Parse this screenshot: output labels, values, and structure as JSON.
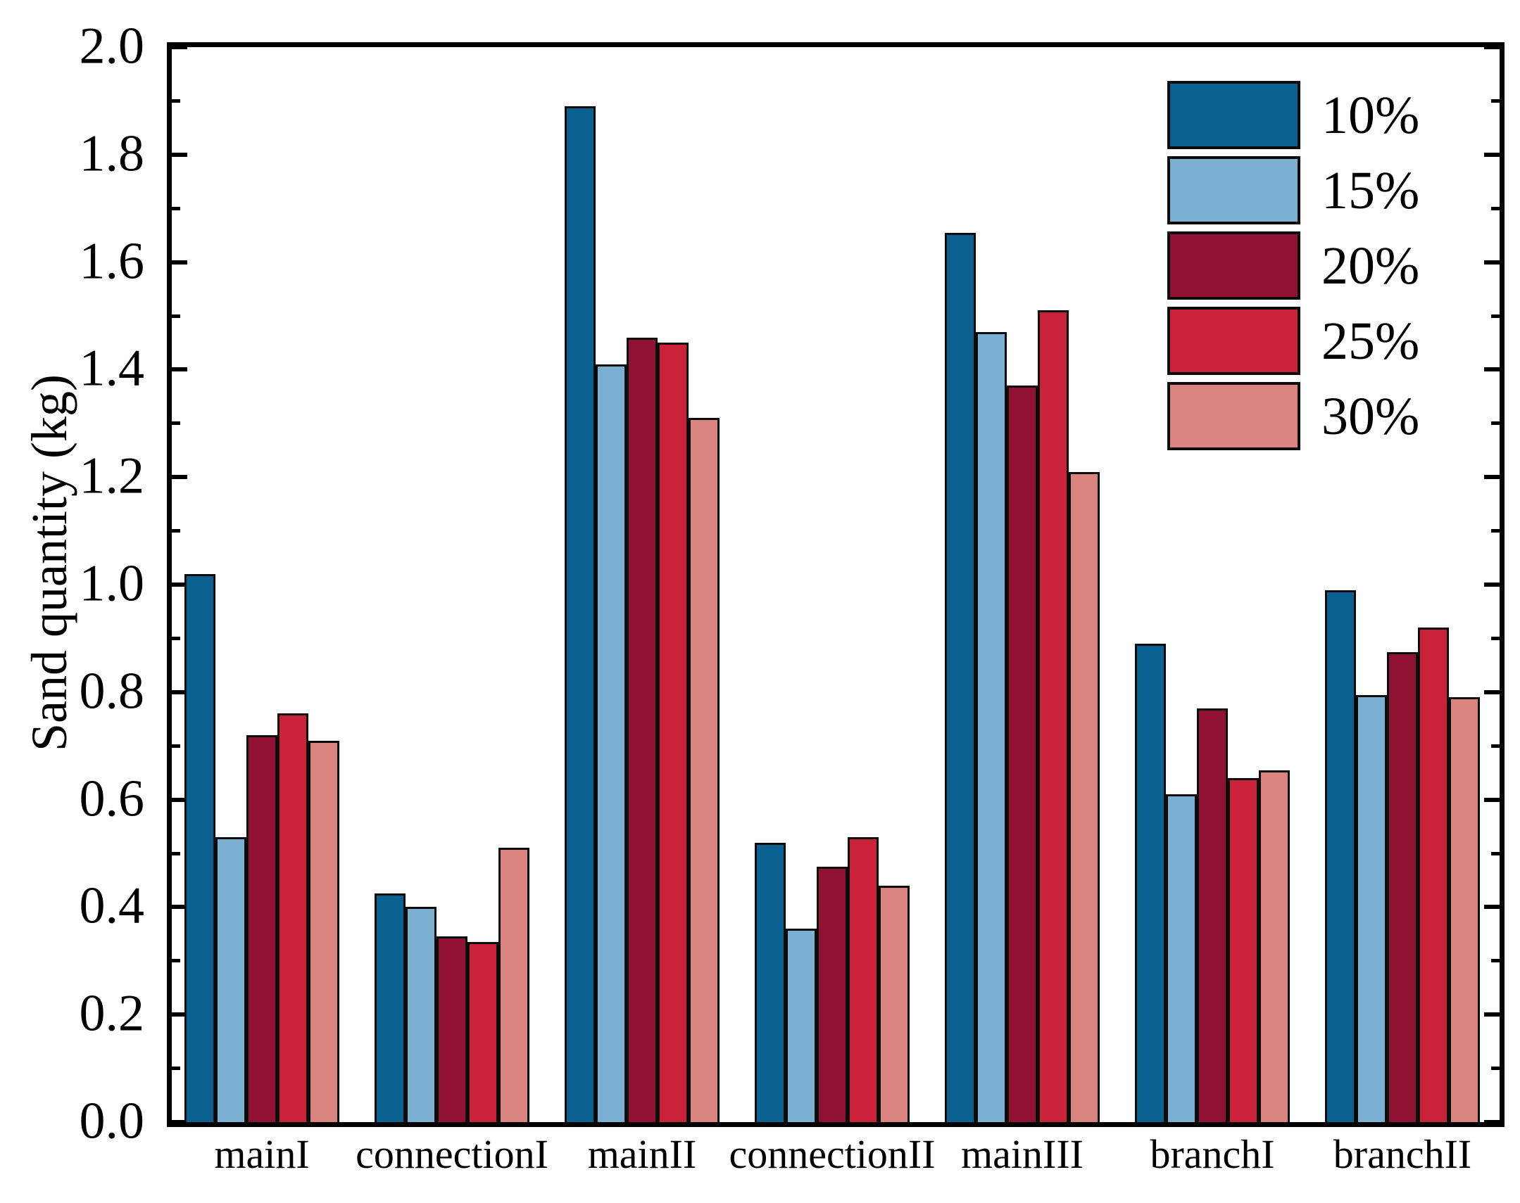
{
  "chart_data": {
    "type": "bar",
    "title": "",
    "xlabel": "",
    "ylabel": "Sand quantity (kg)",
    "categories": [
      "mainI",
      "connectionI",
      "mainII",
      "connectionII",
      "mainIII",
      "branchI",
      "branchII"
    ],
    "series": [
      {
        "name": "10%",
        "color": "#0a608e",
        "values": [
          1.02,
          0.425,
          1.89,
          0.52,
          1.655,
          0.89,
          0.99
        ]
      },
      {
        "name": "15%",
        "color": "#7cb0d2",
        "values": [
          0.53,
          0.4,
          1.41,
          0.36,
          1.47,
          0.61,
          0.795
        ]
      },
      {
        "name": "20%",
        "color": "#8f1233",
        "values": [
          0.72,
          0.345,
          1.46,
          0.475,
          1.37,
          0.77,
          0.875
        ]
      },
      {
        "name": "25%",
        "color": "#ca2339",
        "values": [
          0.76,
          0.335,
          1.45,
          0.53,
          1.51,
          0.64,
          0.92
        ]
      },
      {
        "name": "30%",
        "color": "#d9847f",
        "values": [
          0.71,
          0.51,
          1.31,
          0.44,
          1.21,
          0.655,
          0.79
        ]
      }
    ],
    "ylim": [
      0,
      2.0
    ],
    "ytick_step": 0.2,
    "ytick_minor_step": 0.1,
    "ytick_labels": [
      "0.0",
      "0.2",
      "0.4",
      "0.6",
      "0.8",
      "1.0",
      "1.2",
      "1.4",
      "1.6",
      "1.8",
      "2.0"
    ],
    "legend_position": "upper right",
    "grid": false,
    "bar_edge_color": "#0b0b0b",
    "background": "#ffffff"
  }
}
